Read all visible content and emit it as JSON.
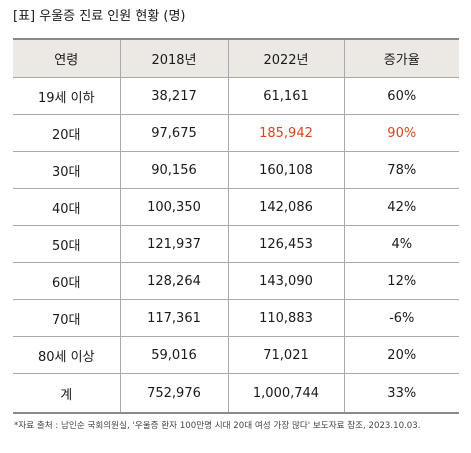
{
  "title": "[표] 우울증 진료 인원 현황 (명)",
  "table": {
    "headers": [
      "연령",
      "2018년",
      "2022년",
      "증가율"
    ],
    "rows": [
      {
        "age": "19세 이하",
        "y2018": "38,217",
        "y2022": "61,161",
        "rate": "60%"
      },
      {
        "age": "20대",
        "y2018": "97,675",
        "y2022": "185,942",
        "rate": "90%"
      },
      {
        "age": "30대",
        "y2018": "90,156",
        "y2022": "160,108",
        "rate": "78%"
      },
      {
        "age": "40대",
        "y2018": "100,350",
        "y2022": "142,086",
        "rate": "42%"
      },
      {
        "age": "50대",
        "y2018": "121,937",
        "y2022": "126,453",
        "rate": "4%"
      },
      {
        "age": "60대",
        "y2018": "128,264",
        "y2022": "143,090",
        "rate": "12%"
      },
      {
        "age": "70대",
        "y2018": "117,361",
        "y2022": "110,883",
        "rate": "-6%"
      },
      {
        "age": "80세 이상",
        "y2018": "59,016",
        "y2022": "71,021",
        "rate": "20%"
      },
      {
        "age": "계",
        "y2018": "752,976",
        "y2022": "1,000,744",
        "rate": "33%"
      }
    ]
  },
  "source": "*자료 출처 : 남인순 국회의원실, '우울증 환자 100만명 시대 20대 여성 가장 많다' 보도자료 참조, 2023.10.03.",
  "colors": {
    "header_bg": "#ece8e4",
    "highlight": "#d8441c",
    "rule": "#8c8a88"
  }
}
